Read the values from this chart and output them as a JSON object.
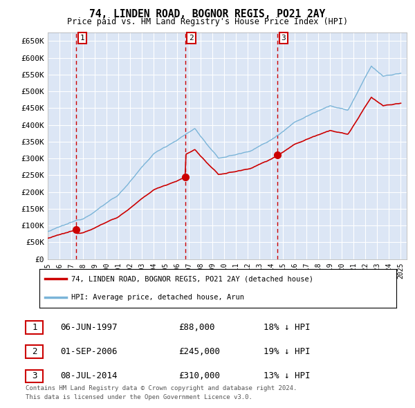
{
  "title": "74, LINDEN ROAD, BOGNOR REGIS, PO21 2AY",
  "subtitle": "Price paid vs. HM Land Registry's House Price Index (HPI)",
  "ylim": [
    0,
    675000
  ],
  "yticks": [
    0,
    50000,
    100000,
    150000,
    200000,
    250000,
    300000,
    350000,
    400000,
    450000,
    500000,
    550000,
    600000,
    650000
  ],
  "ytick_labels": [
    "£0",
    "£50K",
    "£100K",
    "£150K",
    "£200K",
    "£250K",
    "£300K",
    "£350K",
    "£400K",
    "£450K",
    "£500K",
    "£550K",
    "£600K",
    "£650K"
  ],
  "bg_color": "#dce6f5",
  "grid_color": "white",
  "sale_times": [
    1997.42,
    2006.67,
    2014.52
  ],
  "sale_prices": [
    88000,
    245000,
    310000
  ],
  "sale_labels": [
    "1",
    "2",
    "3"
  ],
  "legend_line1": "74, LINDEN ROAD, BOGNOR REGIS, PO21 2AY (detached house)",
  "legend_line2": "HPI: Average price, detached house, Arun",
  "table_rows": [
    {
      "num": "1",
      "date": "06-JUN-1997",
      "price": "£88,000",
      "hpi": "18% ↓ HPI"
    },
    {
      "num": "2",
      "date": "01-SEP-2006",
      "price": "£245,000",
      "hpi": "19% ↓ HPI"
    },
    {
      "num": "3",
      "date": "08-JUL-2014",
      "price": "£310,000",
      "hpi": "13% ↓ HPI"
    }
  ],
  "footnote1": "Contains HM Land Registry data © Crown copyright and database right 2024.",
  "footnote2": "This data is licensed under the Open Government Licence v3.0.",
  "hpi_color": "#7ab4d8",
  "sale_line_color": "#cc0000",
  "sale_dot_color": "#cc0000",
  "vline_color": "#cc0000",
  "box_color": "#cc0000",
  "xlim_start": 1995.0,
  "xlim_end": 2025.5,
  "xtick_years": [
    1995,
    1996,
    1997,
    1998,
    1999,
    2000,
    2001,
    2002,
    2003,
    2004,
    2005,
    2006,
    2007,
    2008,
    2009,
    2010,
    2011,
    2012,
    2013,
    2014,
    2015,
    2016,
    2017,
    2018,
    2019,
    2020,
    2021,
    2022,
    2023,
    2024,
    2025
  ]
}
